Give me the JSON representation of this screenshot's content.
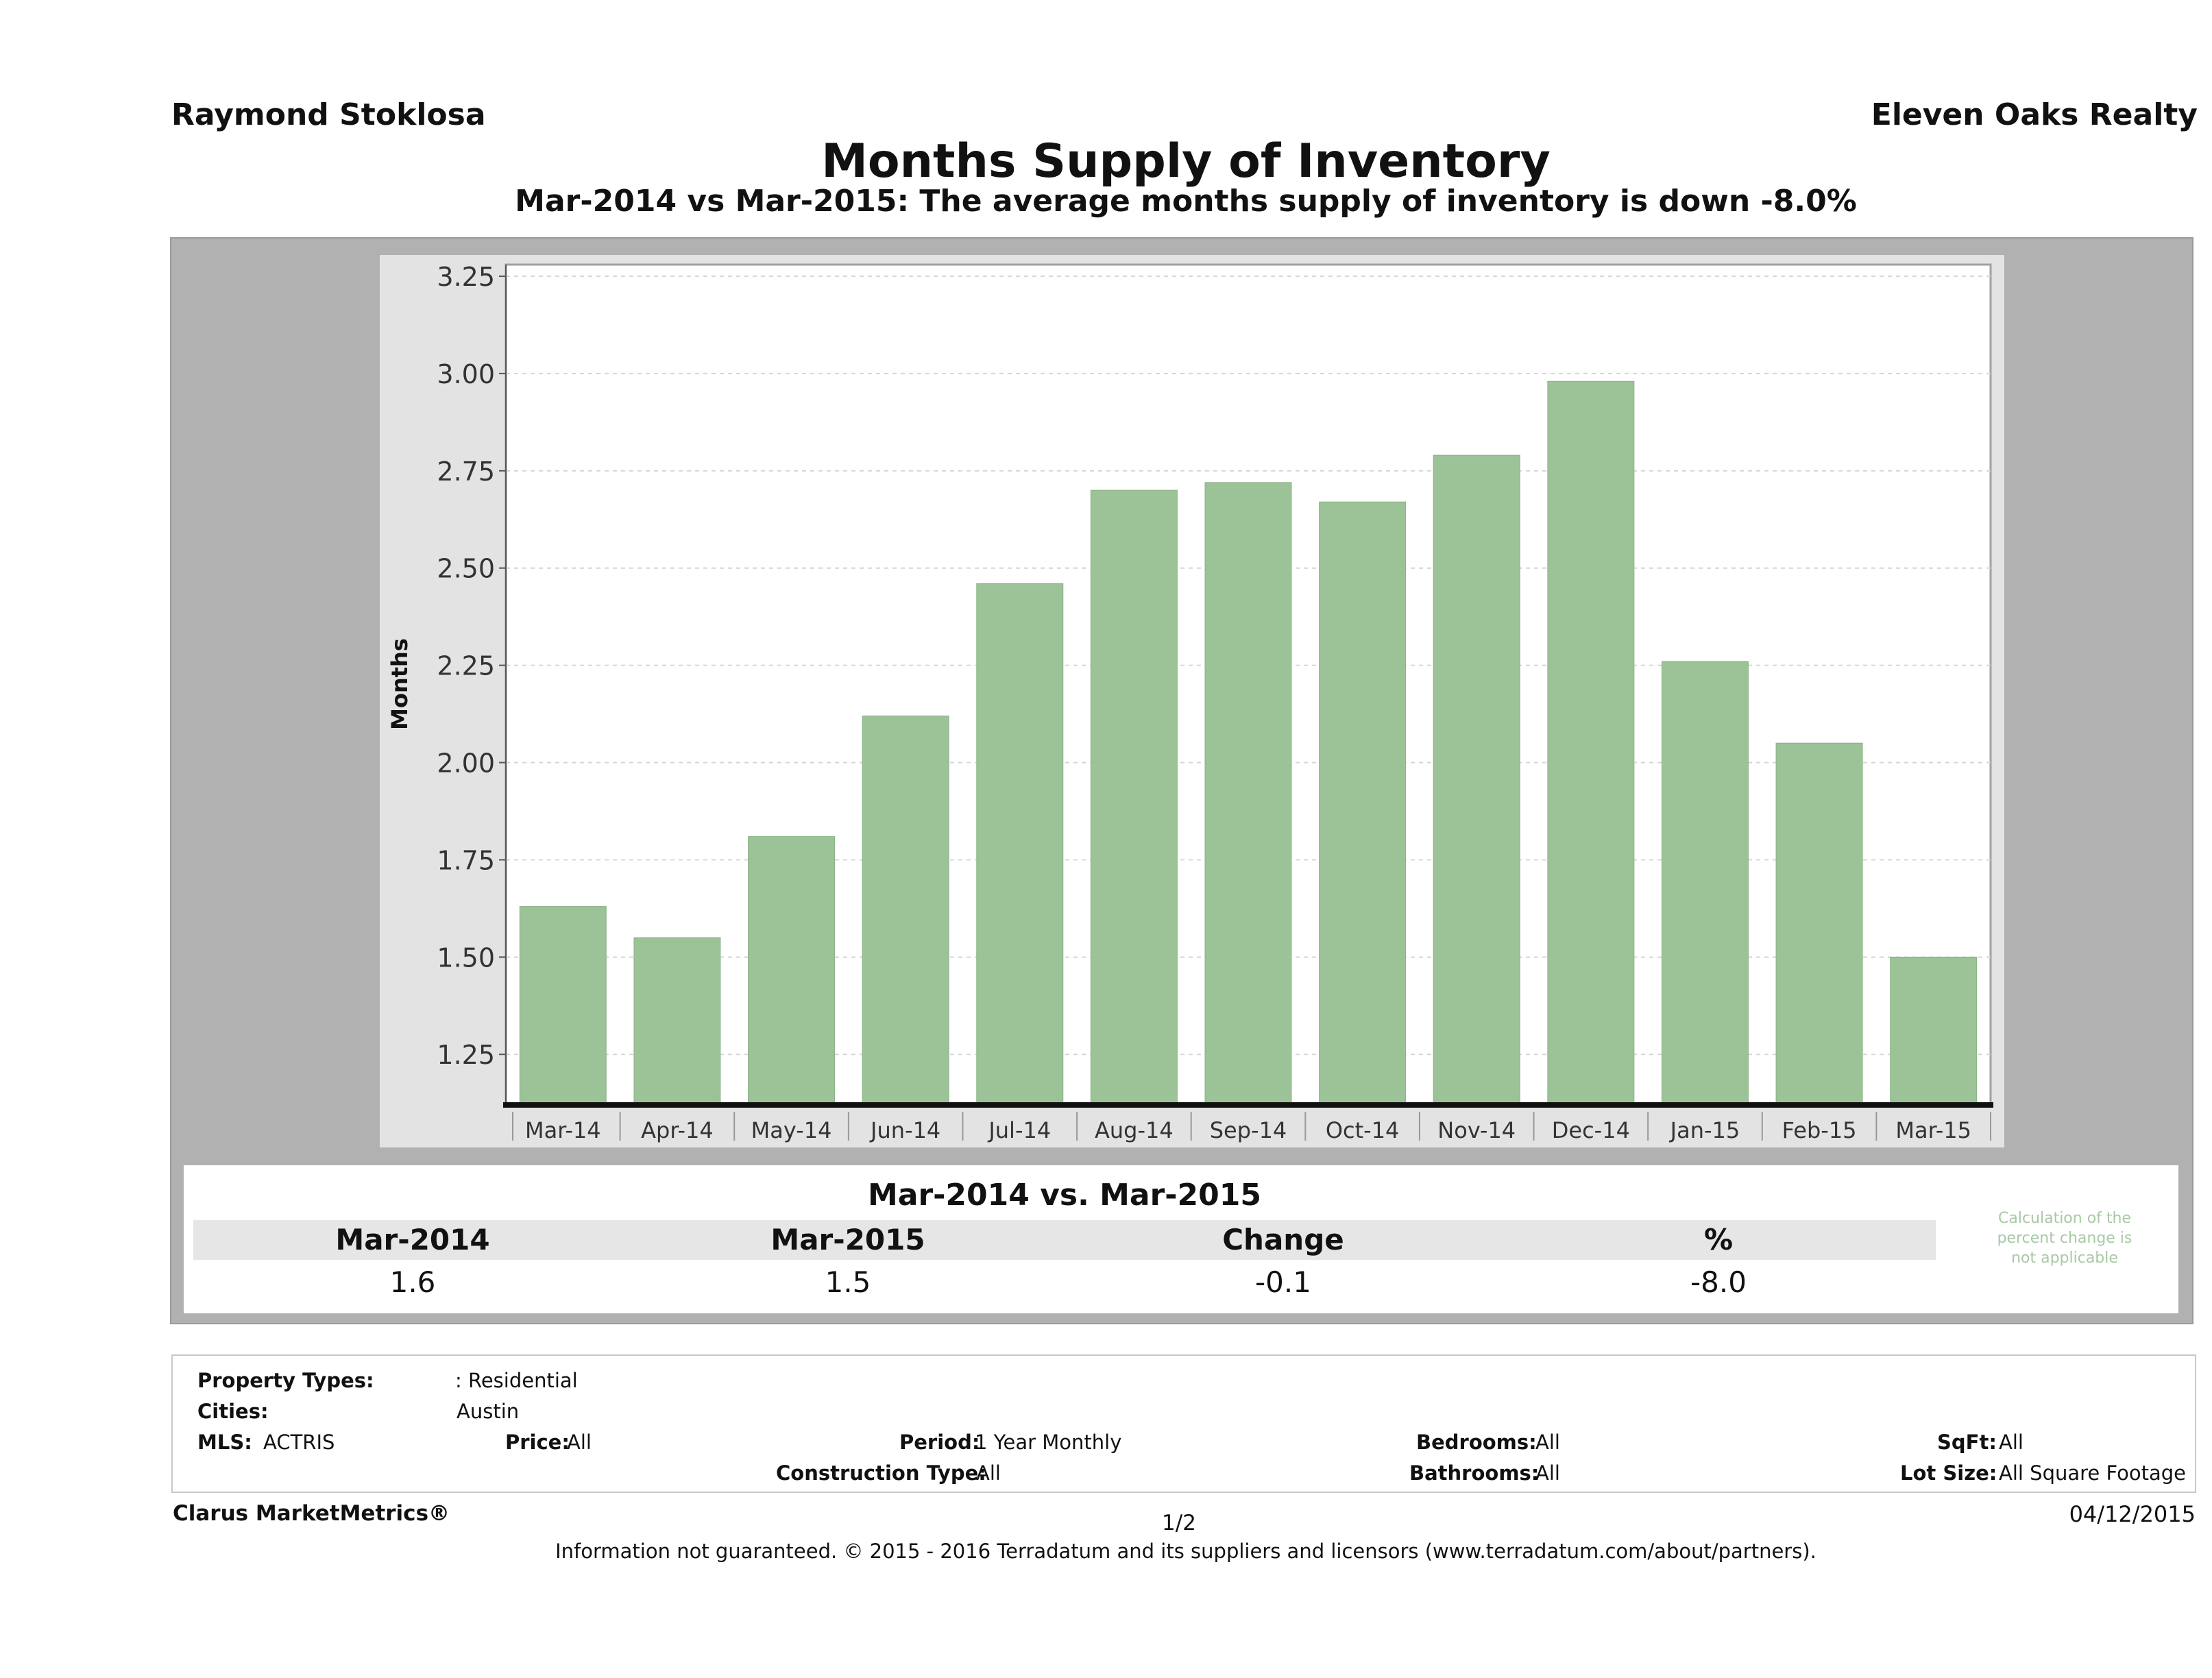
{
  "header": {
    "agent": "Raymond Stoklosa",
    "brokerage": "Eleven Oaks Realty",
    "title": "Months Supply of Inventory",
    "subtitle": "Mar-2014 vs Mar-2015: The average months supply of inventory is down -8.0%"
  },
  "chart_data": {
    "type": "bar",
    "ylabel": "Months",
    "xlabel": "",
    "categories": [
      "Mar-14",
      "Apr-14",
      "May-14",
      "Jun-14",
      "Jul-14",
      "Aug-14",
      "Sep-14",
      "Oct-14",
      "Nov-14",
      "Dec-14",
      "Jan-15",
      "Feb-15",
      "Mar-15"
    ],
    "values": [
      1.63,
      1.55,
      1.81,
      2.12,
      2.46,
      2.7,
      2.72,
      2.67,
      2.79,
      2.98,
      2.26,
      2.05,
      1.5
    ],
    "ylim": [
      1.12,
      3.28
    ],
    "yticks": [
      "1.25",
      "1.50",
      "1.75",
      "2.00",
      "2.25",
      "2.50",
      "2.75",
      "3.00",
      "3.25"
    ],
    "grid": true,
    "bar_color": "#9cc298"
  },
  "comparison": {
    "heading": "Mar-2014 vs. Mar-2015",
    "headers": [
      "Mar-2014",
      "Mar-2015",
      "Change",
      "%"
    ],
    "values": [
      "1.6",
      "1.5",
      "-0.1",
      "-8.0"
    ],
    "note": "Calculation of the percent change is not applicable"
  },
  "criteria": {
    "property_types_label": "Property Types:",
    "property_types_value": ": Residential",
    "cities_label": "Cities:",
    "cities_value": "Austin",
    "mls_label": "MLS:",
    "mls_value": "ACTRIS",
    "price_label": "Price:",
    "price_value": "All",
    "period_label": "Period:",
    "period_value": "1 Year Monthly",
    "construction_label": "Construction Type:",
    "construction_value": "All",
    "bedrooms_label": "Bedrooms:",
    "bedrooms_value": "All",
    "bathrooms_label": "Bathrooms:",
    "bathrooms_value": "All",
    "sqft_label": "SqFt:",
    "sqft_value": "All",
    "lotsize_label": "Lot Size:",
    "lotsize_value": "All Square Footage"
  },
  "footer": {
    "product": "Clarus MarketMetrics®",
    "page": "1/2",
    "date": "04/12/2015",
    "disclaimer": "Information not guaranteed. © 2015 - 2016 Terradatum and its suppliers and licensors (www.terradatum.com/about/partners)."
  }
}
